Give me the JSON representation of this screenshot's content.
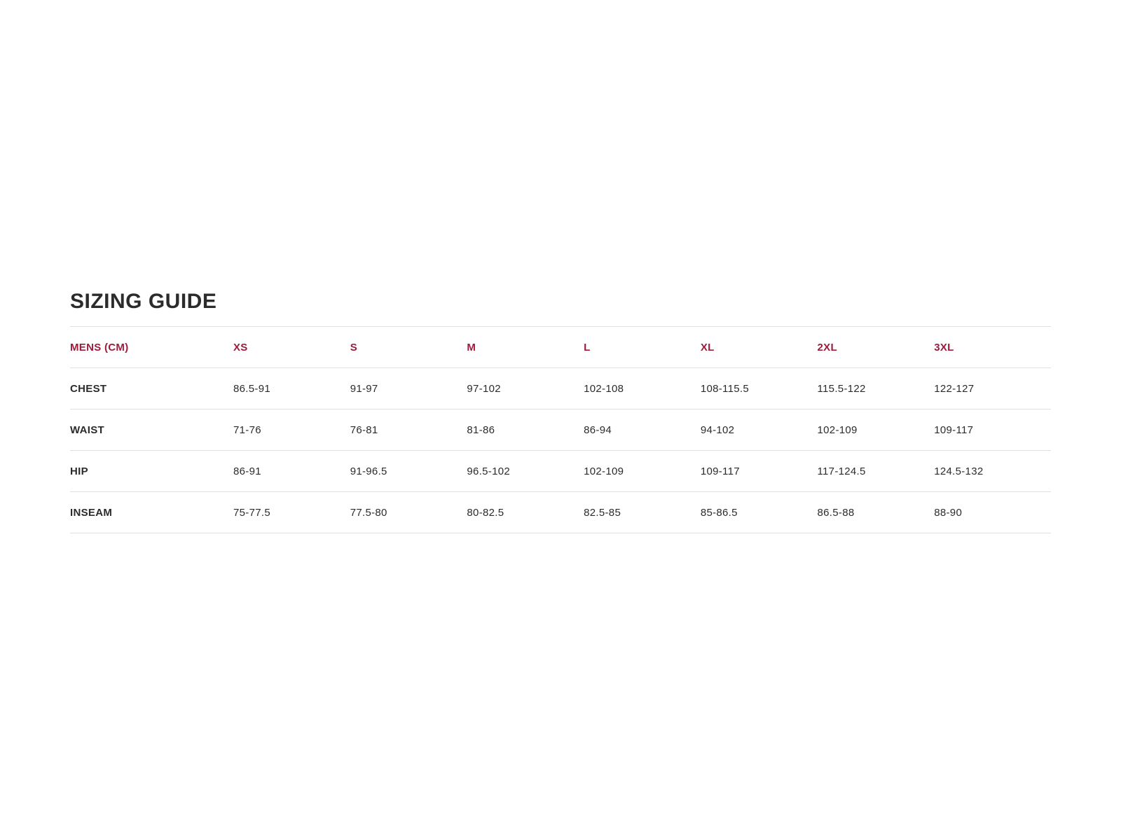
{
  "page": {
    "background": "#ffffff"
  },
  "sizing_guide": {
    "title": "SIZING GUIDE",
    "accent_color": "#9e1b3c",
    "text_color": "#2b2b2b",
    "divider_color": "#e0e0e0",
    "unit": "CM",
    "columns": [
      "MENS (CM)",
      "XS",
      "S",
      "M",
      "L",
      "XL",
      "2XL",
      "3XL"
    ],
    "rows": [
      {
        "label": "CHEST",
        "values": [
          "86.5-91",
          "91-97",
          "97-102",
          "102-108",
          "108-115.5",
          "115.5-122",
          "122-127"
        ]
      },
      {
        "label": "WAIST",
        "values": [
          "71-76",
          "76-81",
          "81-86",
          "86-94",
          "94-102",
          "102-109",
          "109-117"
        ]
      },
      {
        "label": "HIP",
        "values": [
          "86-91",
          "91-96.5",
          "96.5-102",
          "102-109",
          "109-117",
          "117-124.5",
          "124.5-132"
        ]
      },
      {
        "label": "INSEAM",
        "values": [
          "75-77.5",
          "77.5-80",
          "80-82.5",
          "82.5-85",
          "85-86.5",
          "86.5-88",
          "88-90"
        ]
      }
    ]
  }
}
